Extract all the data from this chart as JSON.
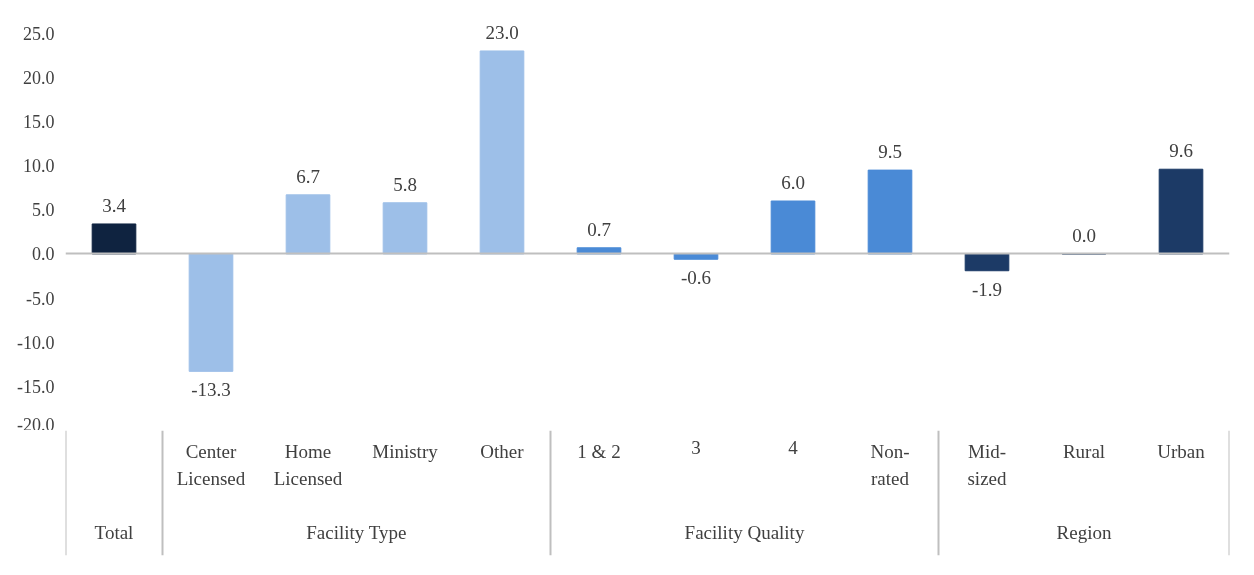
{
  "chart_data": {
    "type": "bar",
    "categories": [
      null,
      "Center Licensed",
      "Home Licensed",
      "Ministry",
      "Other",
      "1 & 2",
      "3",
      "4",
      "Non-rated",
      "Mid-sized",
      "Rural",
      "Urban"
    ],
    "values": [
      3.4,
      -13.3,
      6.7,
      5.8,
      23.0,
      0.7,
      -0.6,
      6.0,
      9.5,
      -1.9,
      0.0,
      9.6
    ],
    "value_labels": [
      "3.4",
      "-13.3",
      "6.7",
      "5.8",
      "23.0",
      "0.7",
      "-0.6",
      "6.0",
      "9.5",
      "-1.9",
      "0.0",
      "9.6"
    ],
    "colors": [
      "#0f2340",
      "#9dbfe8",
      "#9dbfe8",
      "#9dbfe8",
      "#9dbfe8",
      "#4a8ad6",
      "#4a8ad6",
      "#4a8ad6",
      "#4a8ad6",
      "#1c3a66",
      "#1c3a66",
      "#1c3a66"
    ],
    "ylim": [
      -20,
      25
    ],
    "yticks": [
      {
        "value": -20,
        "label": "-20.0"
      },
      {
        "value": -15,
        "label": "-15.0"
      },
      {
        "value": -10,
        "label": "-10.0"
      },
      {
        "value": -5,
        "label": "-5.0"
      },
      {
        "value": 0,
        "label": "0.0"
      },
      {
        "value": 5,
        "label": "5.0"
      },
      {
        "value": 10,
        "label": "10.0"
      },
      {
        "value": 15,
        "label": "15.0"
      },
      {
        "value": 20,
        "label": "20.0"
      },
      {
        "value": 25,
        "label": "25.0"
      }
    ],
    "annotations": [
      "Total",
      "Facility Type",
      "Facility Quality",
      "Region"
    ]
  }
}
